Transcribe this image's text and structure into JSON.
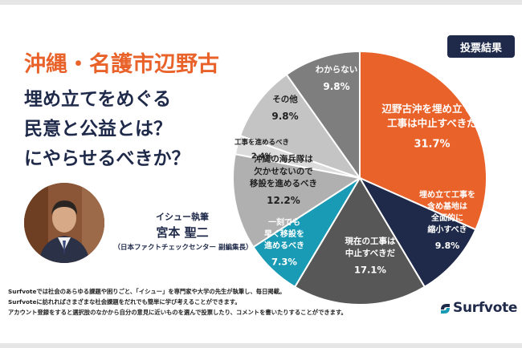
{
  "header": {
    "topic": "沖縄・名護市辺野古",
    "question_lines": [
      "埋め立てをめぐる",
      "民意と公益とは？",
      "にやらせるべきか？"
    ]
  },
  "author": {
    "role": "イシュー執筆",
    "name": "宮本 聖二",
    "affiliation": "（日本ファクトチェックセンター 副編集長）"
  },
  "results_badge": "投票結果",
  "footer": {
    "lines": [
      "Surfvoteでは社会のあらゆる課題や困りごと、「イシュー」を専門家や大学の先生が執筆し、毎日掲載。",
      "Surfvoteに訪れればさまざまな社会課題をだれでも簡単に学び考えることができます。",
      "アカウント登録をすると選択肢のなかから自分の意見に近いものを選んで投票したり、コメントを書いたりすることができます。"
    ]
  },
  "logo": {
    "text": "Surfvote",
    "icon": "surfvote-s-icon"
  },
  "colors": {
    "orange": "#e8622a",
    "navy": "#1f2a4a",
    "teal": "#1a9bb5"
  },
  "chart_data": {
    "type": "pie",
    "start": "top, clockwise",
    "slices": [
      {
        "label_lines": [
          "辺野古沖を埋め立てる",
          "工事は中止すべきだ"
        ],
        "value_text": "31.7%",
        "value": 31.7,
        "color": "#e8622a",
        "text_color": "#ffffff"
      },
      {
        "label_lines": [
          "埋め立て工事を",
          "含め基地は",
          "全面的に",
          "縮小すべき"
        ],
        "value_text": "9.8%",
        "value": 9.8,
        "color": "#1f2a4a",
        "text_color": "#ffffff"
      },
      {
        "label_lines": [
          "現在の工事は",
          "中止すべきだ"
        ],
        "value_text": "17.1%",
        "value": 17.1,
        "color": "#575757",
        "text_color": "#ffffff"
      },
      {
        "label_lines": [
          "一刻でも",
          "早く移設を",
          "進めるべき"
        ],
        "value_text": "7.3%",
        "value": 7.3,
        "color": "#1a9bb5",
        "text_color": "#ffffff"
      },
      {
        "label_lines": [
          "沖縄の海兵隊は",
          "欠かせないので",
          "移設を進めるべき"
        ],
        "value_text": "12.2%",
        "value": 12.2,
        "color": "#b0b0b0",
        "text_color": "#1f1f1f"
      },
      {
        "label_lines": [
          "工事を進めるべき"
        ],
        "value_text": "2.4%",
        "value": 2.4,
        "color": "#dcdcdc",
        "text_color": "#1f1f1f"
      },
      {
        "label_lines": [
          "その他"
        ],
        "value_text": "9.8%",
        "value": 9.8,
        "color": "#c4c4c4",
        "text_color": "#1f1f1f"
      },
      {
        "label_lines": [
          "わからない"
        ],
        "value_text": "9.8%",
        "value": 9.8,
        "color": "#7e7e7e",
        "text_color": "#ffffff"
      }
    ]
  }
}
